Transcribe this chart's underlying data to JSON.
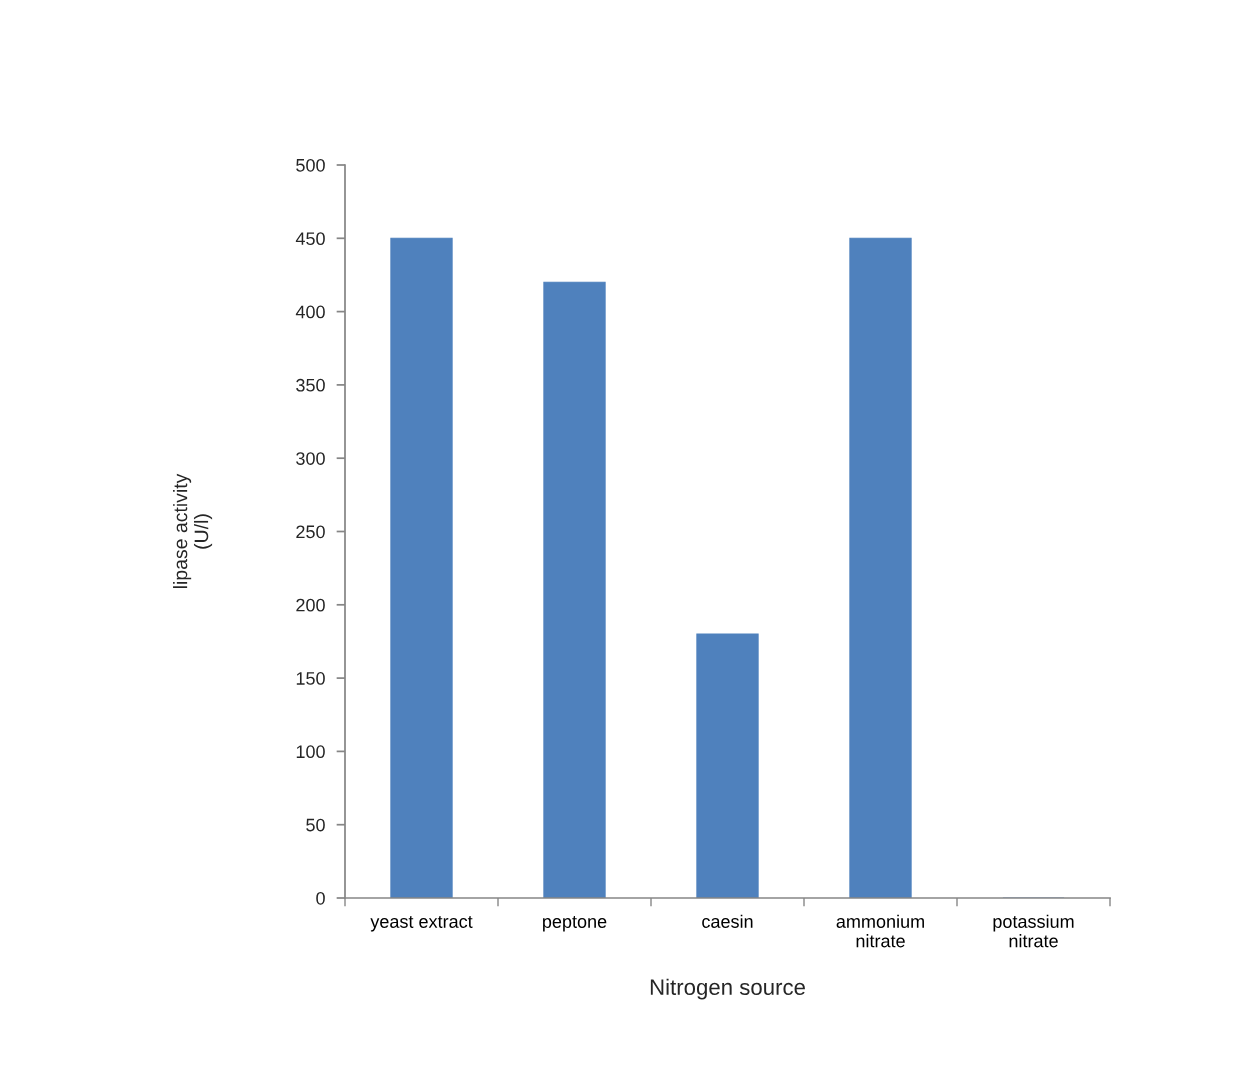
{
  "chart_data": {
    "type": "bar",
    "xlabel": "Nitrogen source",
    "ylabel": "lipase activity\n(U/l)",
    "categories": [
      "yeast extract",
      "peptone",
      "caesin",
      "ammonium\nnitrate",
      "potassium\nnitrate"
    ],
    "values": [
      450,
      420,
      180,
      450,
      0
    ],
    "color": "#4f81bd",
    "ylim": [
      0,
      500
    ],
    "yticks": [
      0,
      50,
      100,
      150,
      200,
      250,
      300,
      350,
      400,
      450,
      500
    ],
    "grid": false
  }
}
